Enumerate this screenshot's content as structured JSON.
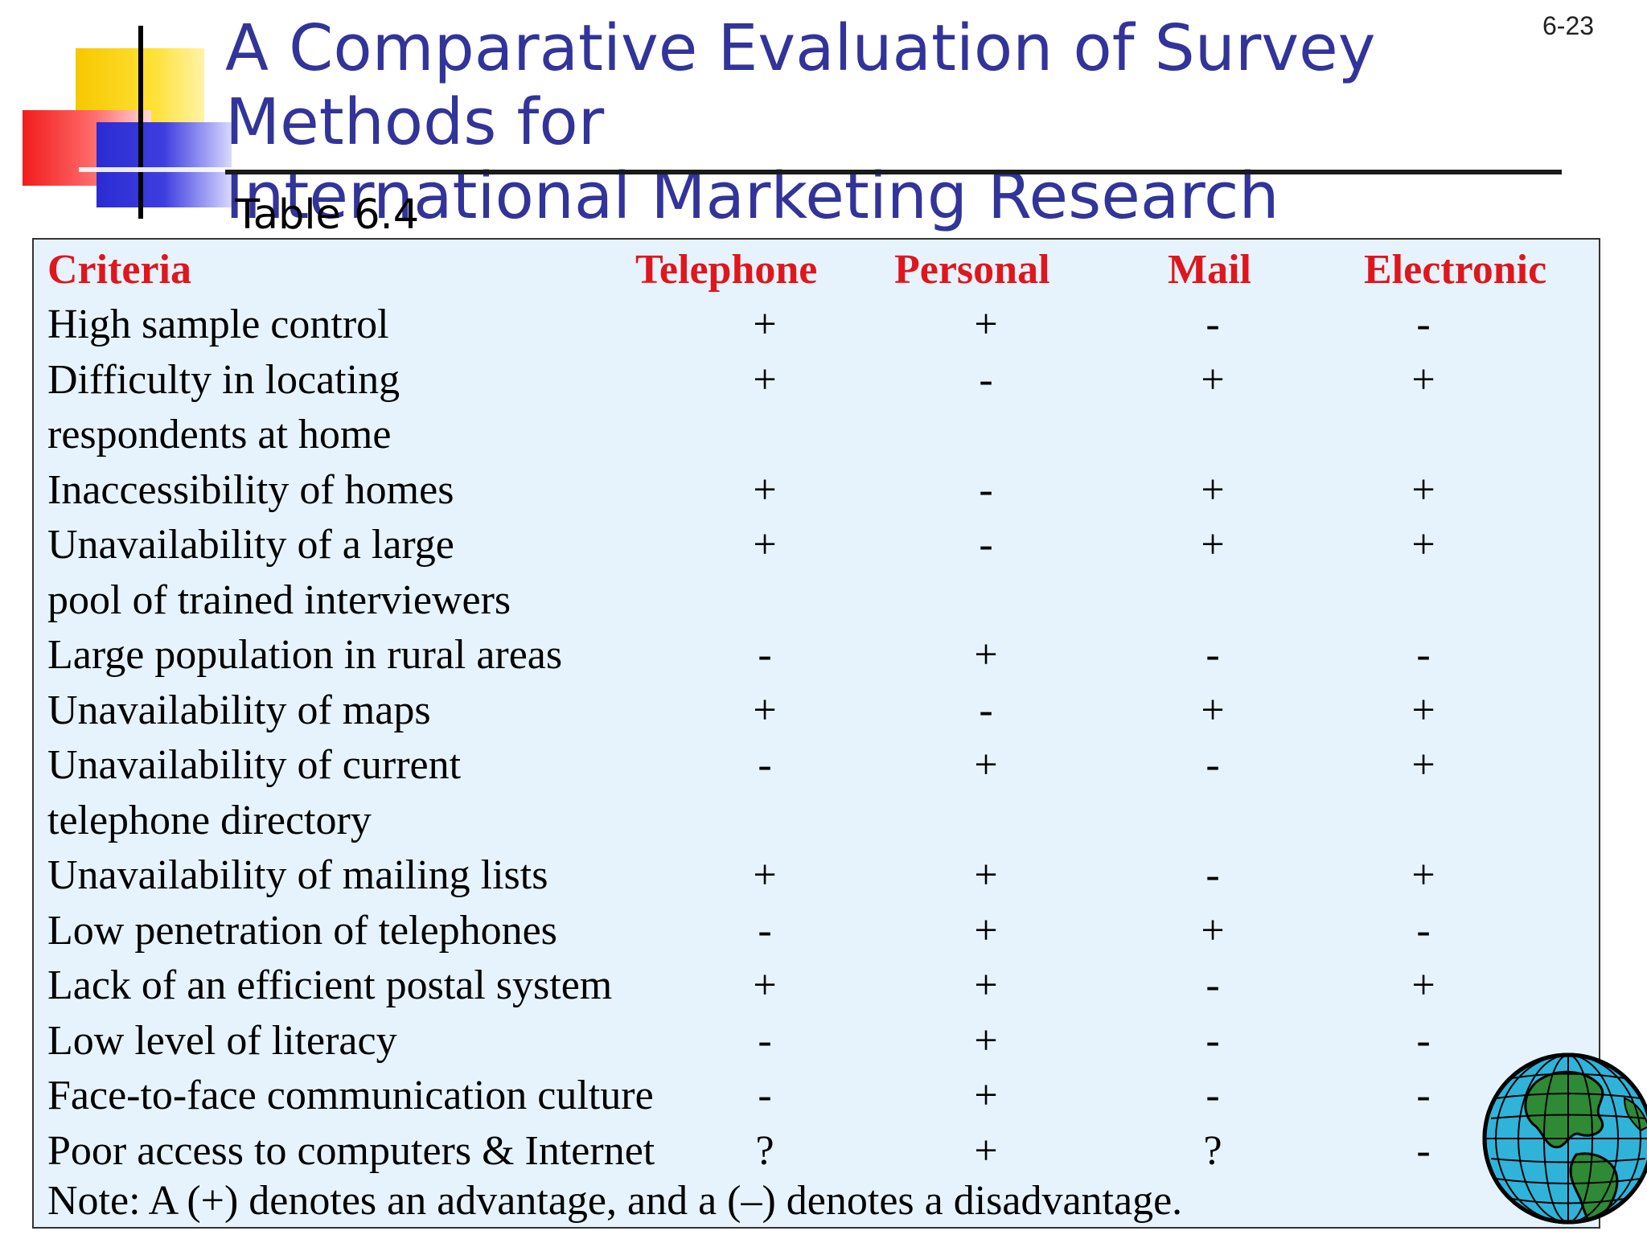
{
  "slide_number": "6-23",
  "title_line1": "A Comparative Evaluation of Survey Methods for",
  "title_line2": "International Marketing Research",
  "table_label": "Table 6.4",
  "headers": [
    "Criteria",
    "Telephone",
    "Personal",
    "Mail",
    "Electronic"
  ],
  "rows": [
    {
      "criteria": "High sample control",
      "values": [
        "+",
        "+",
        "-",
        "-"
      ]
    },
    {
      "criteria": "Difficulty in locating",
      "values": [
        "+",
        "-",
        "+",
        "+"
      ]
    },
    {
      "criteria": "respondents at home",
      "values": [
        "",
        "",
        "",
        ""
      ]
    },
    {
      "criteria": "Inaccessibility of homes",
      "values": [
        "+",
        "-",
        "+",
        "+"
      ]
    },
    {
      "criteria": "Unavailability of a large",
      "values": [
        "+",
        "-",
        "+",
        "+"
      ]
    },
    {
      "criteria": "pool of trained interviewers",
      "values": [
        "",
        "",
        "",
        ""
      ]
    },
    {
      "criteria": "Large population in rural areas",
      "values": [
        "-",
        "+",
        "-",
        "-"
      ]
    },
    {
      "criteria": "Unavailability of maps",
      "values": [
        "+",
        "-",
        "+",
        "+"
      ]
    },
    {
      "criteria": "Unavailability of current",
      "values": [
        "-",
        "+",
        "-",
        "+"
      ]
    },
    {
      "criteria": "telephone directory",
      "values": [
        "",
        "",
        "",
        ""
      ]
    },
    {
      "criteria": "Unavailability of mailing lists",
      "values": [
        "+",
        "+",
        "-",
        "+"
      ]
    },
    {
      "criteria": "Low penetration of telephones",
      "values": [
        "-",
        "+",
        "+",
        "-"
      ]
    },
    {
      "criteria": "Lack of an efficient postal system",
      "values": [
        "+",
        "+",
        "-",
        "+"
      ]
    },
    {
      "criteria": "Low level of literacy",
      "values": [
        "-",
        "+",
        "-",
        "-"
      ]
    },
    {
      "criteria": "Face-to-face communication culture",
      "values": [
        "-",
        "+",
        "-",
        "-"
      ]
    },
    {
      "criteria": "Poor access to computers & Internet",
      "values": [
        "?",
        "+",
        "?",
        "-"
      ]
    }
  ],
  "note": "Note: A (+) denotes an advantage, and a (–) denotes a disadvantage.",
  "colors": {
    "title": "#32349a",
    "header": "#e0161d",
    "table_bg": "#e6f3fc"
  },
  "icons": [
    "globe-icon"
  ]
}
